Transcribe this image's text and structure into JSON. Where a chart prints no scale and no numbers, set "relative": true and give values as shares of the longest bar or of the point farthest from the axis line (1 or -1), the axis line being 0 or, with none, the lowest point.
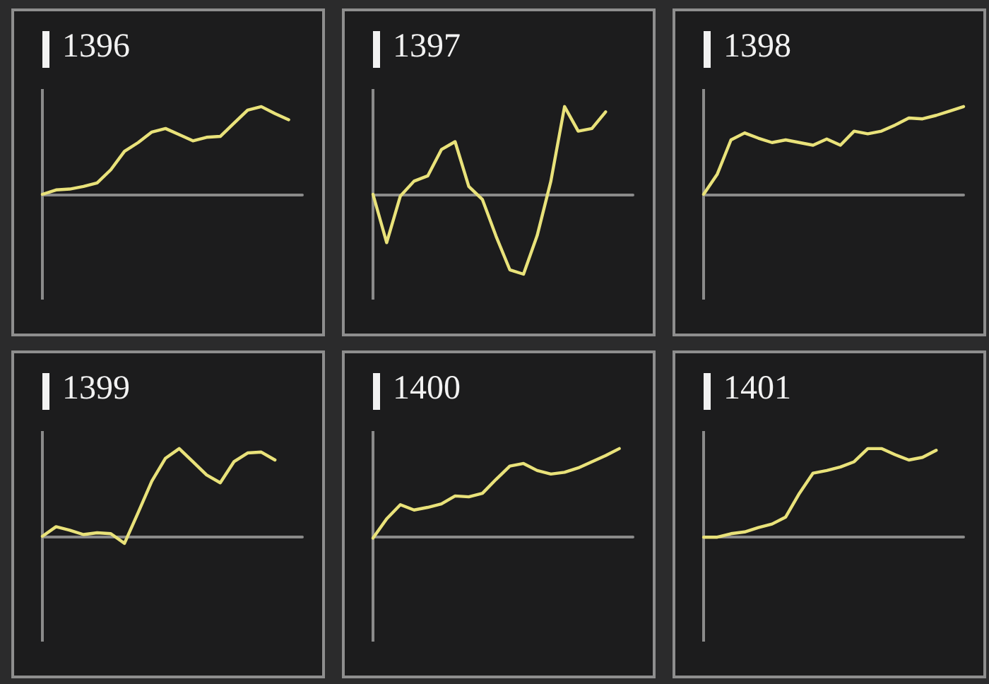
{
  "chart_data": [
    {
      "type": "line",
      "title": "1396",
      "relative": true,
      "color": "#e9e27a",
      "categories": [
        null,
        null,
        null,
        null,
        null,
        null,
        null,
        null,
        null,
        null,
        null,
        null,
        null,
        null,
        null,
        null,
        null,
        null,
        null,
        null
      ],
      "values": [
        0,
        0.05,
        0.06,
        0.09,
        0.13,
        0.28,
        0.49,
        0.59,
        0.71,
        0.75,
        0.68,
        0.61,
        0.65,
        0.66,
        0.81,
        0.96,
        1,
        0.92,
        0.85,
        null
      ]
    },
    {
      "type": "line",
      "title": "1397",
      "relative": true,
      "color": "#e9e27a",
      "categories": [
        null,
        null,
        null,
        null,
        null,
        null,
        null,
        null,
        null,
        null,
        null,
        null,
        null,
        null,
        null,
        null,
        null,
        null,
        null,
        null
      ],
      "values": [
        0,
        -0.55,
        -0.02,
        0.15,
        0.21,
        0.51,
        0.6,
        0.09,
        -0.06,
        -0.48,
        -0.86,
        -0.91,
        -0.47,
        0.15,
        1,
        0.72,
        0.75,
        0.94,
        null,
        null
      ]
    },
    {
      "type": "line",
      "title": "1398",
      "relative": true,
      "color": "#e9e27a",
      "categories": [
        null,
        null,
        null,
        null,
        null,
        null,
        null,
        null,
        null,
        null,
        null,
        null,
        null,
        null,
        null,
        null,
        null,
        null,
        null,
        null
      ],
      "values": [
        0,
        0.23,
        0.62,
        0.7,
        0.64,
        0.59,
        0.62,
        0.59,
        0.56,
        0.63,
        0.56,
        0.72,
        0.69,
        0.72,
        0.79,
        0.87,
        0.86,
        0.9,
        0.95,
        1
      ]
    },
    {
      "type": "line",
      "title": "1399",
      "relative": true,
      "color": "#e9e27a",
      "categories": [
        null,
        null,
        null,
        null,
        null,
        null,
        null,
        null,
        null,
        null,
        null,
        null,
        null,
        null,
        null,
        null,
        null,
        null,
        null,
        null
      ],
      "values": [
        0,
        0.11,
        0.07,
        0.02,
        0.04,
        0.03,
        -0.08,
        0.27,
        0.63,
        0.89,
        1,
        0.85,
        0.7,
        0.61,
        0.85,
        0.95,
        0.96,
        0.87,
        null,
        null
      ]
    },
    {
      "type": "line",
      "title": "1400",
      "relative": true,
      "color": "#e9e27a",
      "categories": [
        null,
        null,
        null,
        null,
        null,
        null,
        null,
        null,
        null,
        null,
        null,
        null,
        null,
        null,
        null,
        null,
        null,
        null,
        null,
        null
      ],
      "values": [
        -0.02,
        0.2,
        0.36,
        0.3,
        0.33,
        0.37,
        0.46,
        0.45,
        0.49,
        0.65,
        0.8,
        0.83,
        0.75,
        0.71,
        0.73,
        0.78,
        0.85,
        0.92,
        1,
        null
      ]
    },
    {
      "type": "line",
      "title": "1401",
      "relative": true,
      "color": "#e9e27a",
      "categories": [
        null,
        null,
        null,
        null,
        null,
        null,
        null,
        null,
        null,
        null,
        null,
        null,
        null,
        null,
        null,
        null,
        null,
        null,
        null,
        null
      ],
      "values": [
        -0.01,
        -0.01,
        0.03,
        0.05,
        0.1,
        0.14,
        0.22,
        0.49,
        0.72,
        0.75,
        0.79,
        0.85,
        1,
        1,
        0.93,
        0.87,
        0.9,
        0.98,
        null,
        null
      ]
    }
  ]
}
